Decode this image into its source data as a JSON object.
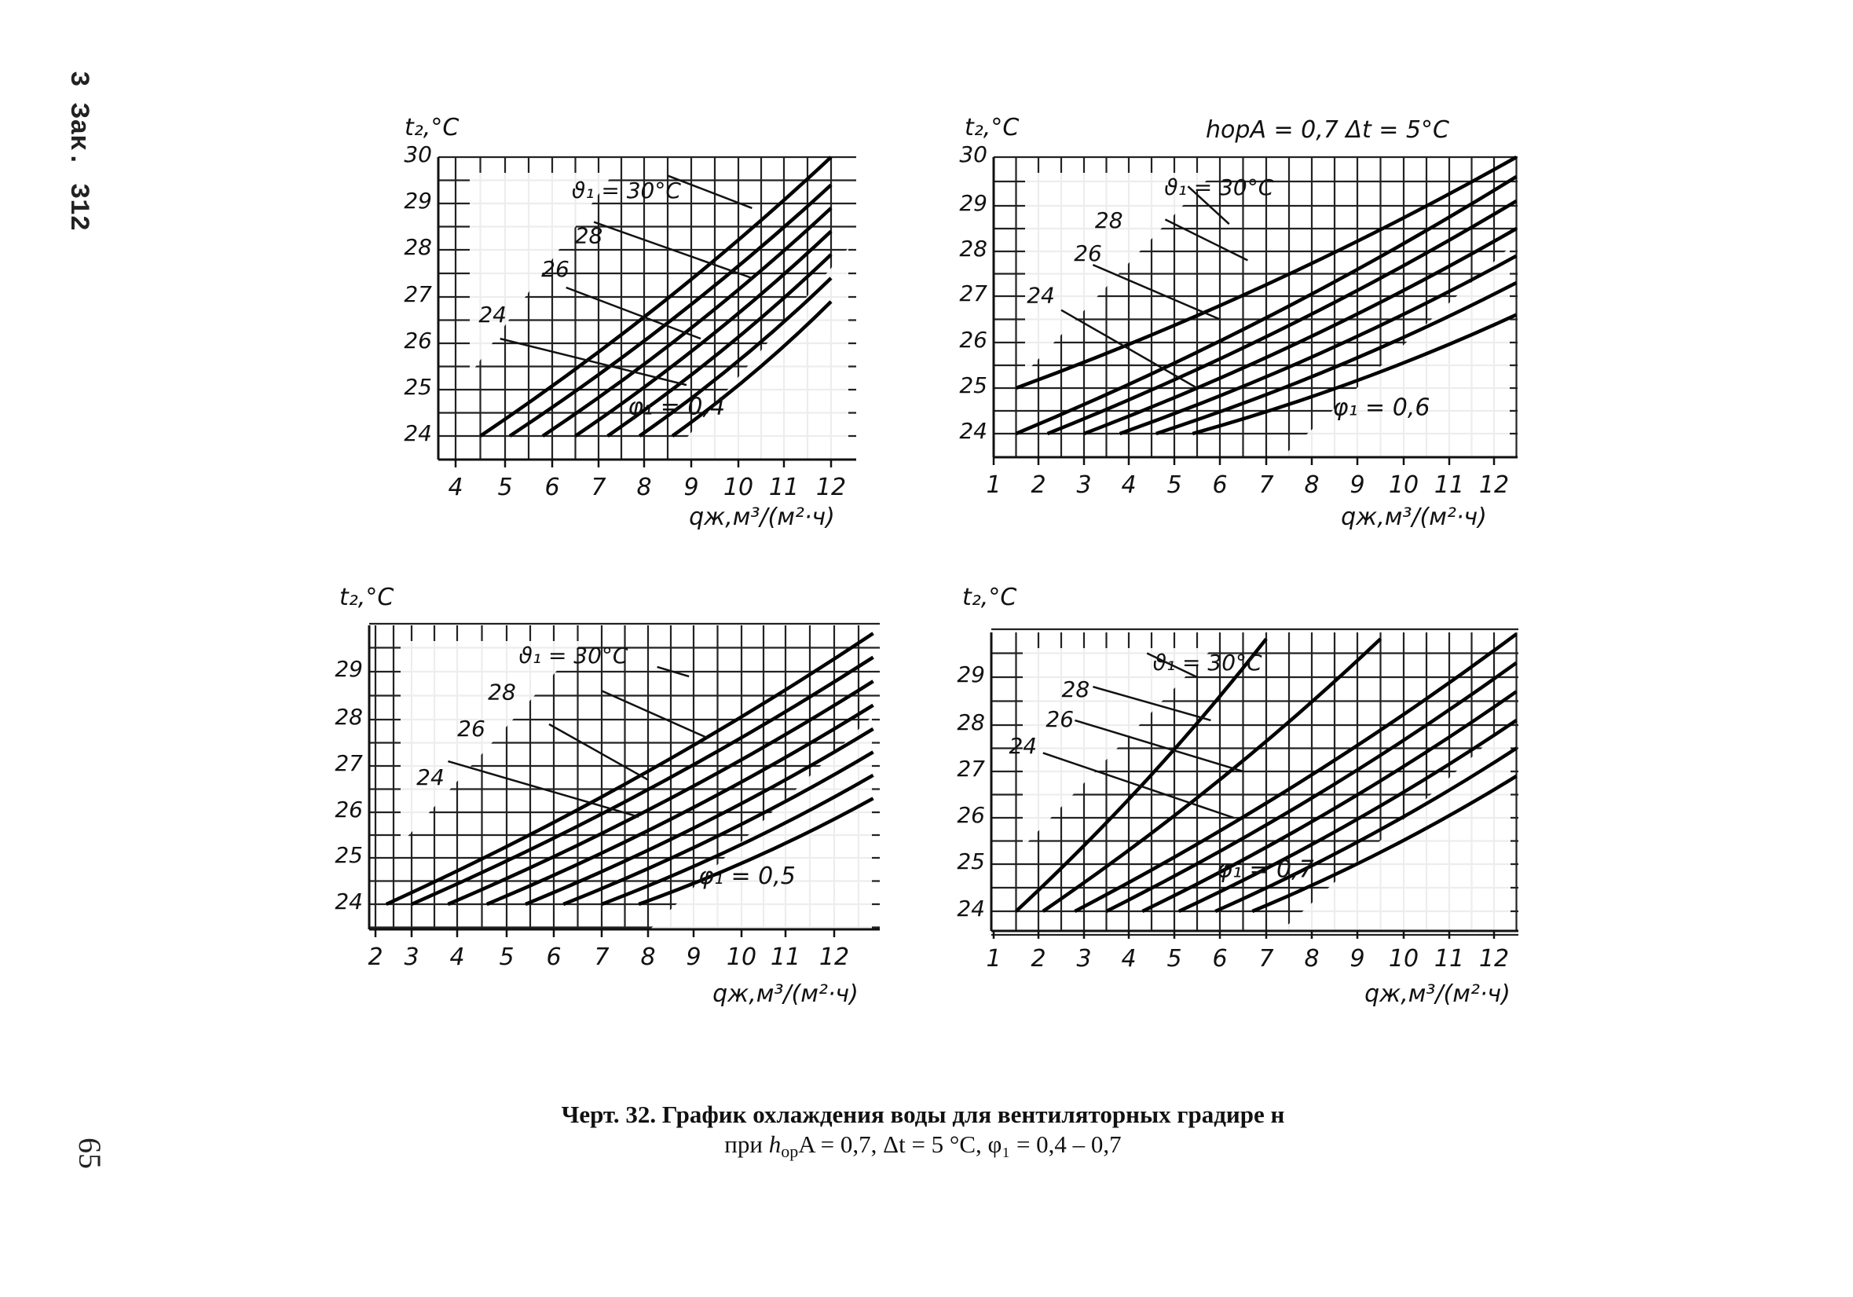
{
  "margin": {
    "side_header": "3 Зак. 312",
    "page_number": "65"
  },
  "caption": {
    "line1": "Черт. 32. График охлаждения воды для вентиляторных градире н",
    "line2_prefix": "при ",
    "h_symbol": "h",
    "h_subscript": "op",
    "line2_suffix": "A = 0,7, Δt = 5 °C, φ₁ = 0,4 – 0,7"
  },
  "chart_data": [
    {
      "type": "line",
      "panel": "top-left",
      "ylabel": "t₂,°C",
      "xlabel": "qж,м³/(м²·ч)",
      "xlim": [
        4,
        12
      ],
      "ylim": [
        24,
        30
      ],
      "x_ticks": [
        "4",
        "5",
        "6",
        "7",
        "8",
        "9",
        "10",
        "11",
        "12"
      ],
      "y_ticks": [
        "24",
        "25",
        "26",
        "27",
        "28",
        "29",
        "30"
      ],
      "annotations": {
        "phi": "φ₁ = 0,4",
        "theta_top": "ϑ₁ = 30°C",
        "theta_labels": [
          "28",
          "26",
          "24"
        ]
      },
      "series": [
        {
          "name": "",
          "points": [
            [
              4.5,
              24.0
            ],
            [
              12.0,
              30.0
            ]
          ]
        },
        {
          "name": "",
          "points": [
            [
              5.1,
              24.0
            ],
            [
              12.0,
              29.4
            ]
          ]
        },
        {
          "name": "",
          "points": [
            [
              5.8,
              24.0
            ],
            [
              12.0,
              28.9
            ]
          ]
        },
        {
          "name": "",
          "points": [
            [
              6.5,
              24.0
            ],
            [
              12.0,
              28.4
            ]
          ]
        },
        {
          "name": "",
          "points": [
            [
              7.2,
              24.0
            ],
            [
              12.0,
              27.9
            ]
          ]
        },
        {
          "name": "",
          "points": [
            [
              7.9,
              24.0
            ],
            [
              12.0,
              27.4
            ]
          ]
        },
        {
          "name": "",
          "points": [
            [
              8.6,
              24.0
            ],
            [
              12.0,
              26.9
            ]
          ]
        }
      ],
      "isotherms": [
        {
          "label": "ϑ₁ = 30°C",
          "from": [
            8.5,
            29.6
          ],
          "to": [
            10.3,
            28.9
          ]
        },
        {
          "label": "28",
          "from": [
            6.9,
            28.6
          ],
          "to": [
            10.3,
            27.4
          ]
        },
        {
          "label": "26",
          "from": [
            6.3,
            27.2
          ],
          "to": [
            9.2,
            26.1
          ]
        },
        {
          "label": "24",
          "from": [
            4.9,
            26.1
          ],
          "to": [
            8.9,
            25.1
          ]
        }
      ]
    },
    {
      "type": "line",
      "panel": "top-right",
      "ylabel": "t₂,°C",
      "xlabel": "qж,м³/(м²·ч)",
      "header": "hорA = 0,7   Δt = 5°C",
      "xlim": [
        1,
        12.5
      ],
      "ylim": [
        24,
        30
      ],
      "x_ticks": [
        "1",
        "2",
        "3",
        "4",
        "5",
        "6",
        "7",
        "8",
        "9",
        "10",
        "11",
        "12"
      ],
      "y_ticks": [
        "24",
        "25",
        "26",
        "27",
        "28",
        "29",
        "30"
      ],
      "annotations": {
        "phi": "φ₁ = 0,6",
        "theta_top": "ϑ₁ = 30°C",
        "theta_labels": [
          "28",
          "26",
          "24"
        ]
      },
      "series": [
        {
          "name": "",
          "points": [
            [
              1.5,
              25.0
            ],
            [
              12.5,
              30.0
            ]
          ]
        },
        {
          "name": "",
          "points": [
            [
              1.5,
              24.0
            ],
            [
              12.5,
              29.6
            ]
          ]
        },
        {
          "name": "",
          "points": [
            [
              2.2,
              24.0
            ],
            [
              12.5,
              29.1
            ]
          ]
        },
        {
          "name": "",
          "points": [
            [
              3.0,
              24.0
            ],
            [
              12.5,
              28.5
            ]
          ]
        },
        {
          "name": "",
          "points": [
            [
              3.8,
              24.0
            ],
            [
              12.5,
              27.9
            ]
          ]
        },
        {
          "name": "",
          "points": [
            [
              4.6,
              24.0
            ],
            [
              12.5,
              27.3
            ]
          ]
        },
        {
          "name": "",
          "points": [
            [
              5.4,
              24.0
            ],
            [
              12.5,
              26.6
            ]
          ]
        }
      ],
      "isotherms": [
        {
          "label": "ϑ₁ = 30°C",
          "from": [
            5.3,
            29.4
          ],
          "to": [
            6.2,
            28.6
          ]
        },
        {
          "label": "28",
          "from": [
            4.8,
            28.7
          ],
          "to": [
            6.6,
            27.8
          ]
        },
        {
          "label": "26",
          "from": [
            3.2,
            27.7
          ],
          "to": [
            6.0,
            26.5
          ]
        },
        {
          "label": "24",
          "from": [
            2.5,
            26.7
          ],
          "to": [
            5.5,
            25.0
          ]
        }
      ]
    },
    {
      "type": "line",
      "panel": "bottom-left",
      "ylabel": "t₂,°C",
      "xlabel": "qж,м³/(м²·ч)",
      "xlim": [
        2,
        12.8
      ],
      "ylim": [
        23.5,
        30
      ],
      "x_ticks": [
        "2",
        "3",
        "4",
        "5",
        "6",
        "7",
        "8",
        "9",
        "10",
        "11",
        "12"
      ],
      "y_ticks": [
        "24",
        "25",
        "26",
        "27",
        "28",
        "29"
      ],
      "annotations": {
        "phi": "φ₁ = 0,5",
        "theta_top": "ϑ₁ = 30°C",
        "theta_labels": [
          "28",
          "26",
          "24"
        ]
      },
      "series": [
        {
          "name": "",
          "points": [
            [
              2.3,
              24.0
            ],
            [
              12.8,
              29.8
            ]
          ]
        },
        {
          "name": "",
          "points": [
            [
              3.0,
              24.0
            ],
            [
              12.8,
              29.3
            ]
          ]
        },
        {
          "name": "",
          "points": [
            [
              3.8,
              24.0
            ],
            [
              12.8,
              28.8
            ]
          ]
        },
        {
          "name": "",
          "points": [
            [
              4.6,
              24.0
            ],
            [
              12.8,
              28.3
            ]
          ]
        },
        {
          "name": "",
          "points": [
            [
              5.4,
              24.0
            ],
            [
              12.8,
              27.8
            ]
          ]
        },
        {
          "name": "",
          "points": [
            [
              6.2,
              24.0
            ],
            [
              12.8,
              27.3
            ]
          ]
        },
        {
          "name": "",
          "points": [
            [
              7.0,
              24.0
            ],
            [
              12.8,
              26.8
            ]
          ]
        },
        {
          "name": "",
          "points": [
            [
              7.8,
              24.0
            ],
            [
              12.8,
              26.3
            ]
          ]
        }
      ],
      "isotherms": [
        {
          "label": "ϑ₁ = 30°C",
          "from": [
            8.2,
            29.1
          ],
          "to": [
            8.9,
            28.9
          ]
        },
        {
          "label": "28",
          "from": [
            7.0,
            28.6
          ],
          "to": [
            9.3,
            27.6
          ]
        },
        {
          "label": "26",
          "from": [
            5.9,
            27.9
          ],
          "to": [
            8.0,
            26.7
          ]
        },
        {
          "label": "24",
          "from": [
            3.8,
            27.1
          ],
          "to": [
            7.8,
            25.9
          ]
        }
      ]
    },
    {
      "type": "line",
      "panel": "bottom-right",
      "ylabel": "t₂,°C",
      "xlabel": "qж,м³/(м²·ч)",
      "xlim": [
        1,
        12.5
      ],
      "ylim": [
        23.5,
        30
      ],
      "x_ticks": [
        "1",
        "2",
        "3",
        "4",
        "5",
        "6",
        "7",
        "8",
        "9",
        "10",
        "11",
        "12"
      ],
      "y_ticks": [
        "24",
        "25",
        "26",
        "27",
        "28",
        "29"
      ],
      "annotations": {
        "phi": "φ₁ = 0,7",
        "theta_top": "ϑ₁ = 30°C",
        "theta_labels": [
          "28",
          "26",
          "24"
        ]
      },
      "series": [
        {
          "name": "",
          "points": [
            [
              1.5,
              24.0
            ],
            [
              7.0,
              29.8
            ]
          ]
        },
        {
          "name": "",
          "points": [
            [
              2.1,
              24.0
            ],
            [
              9.5,
              29.8
            ]
          ]
        },
        {
          "name": "",
          "points": [
            [
              2.8,
              24.0
            ],
            [
              12.5,
              29.9
            ]
          ]
        },
        {
          "name": "",
          "points": [
            [
              3.5,
              24.0
            ],
            [
              12.5,
              29.3
            ]
          ]
        },
        {
          "name": "",
          "points": [
            [
              4.3,
              24.0
            ],
            [
              12.5,
              28.7
            ]
          ]
        },
        {
          "name": "",
          "points": [
            [
              5.1,
              24.0
            ],
            [
              12.5,
              28.1
            ]
          ]
        },
        {
          "name": "",
          "points": [
            [
              5.9,
              24.0
            ],
            [
              12.5,
              27.5
            ]
          ]
        },
        {
          "name": "",
          "points": [
            [
              6.7,
              24.0
            ],
            [
              12.5,
              26.9
            ]
          ]
        }
      ],
      "isotherms": [
        {
          "label": "ϑ₁ = 30°C",
          "from": [
            4.4,
            29.5
          ],
          "to": [
            5.5,
            29.0
          ]
        },
        {
          "label": "28",
          "from": [
            3.2,
            28.8
          ],
          "to": [
            5.8,
            28.1
          ]
        },
        {
          "label": "26",
          "from": [
            2.8,
            28.1
          ],
          "to": [
            6.5,
            27.0
          ]
        },
        {
          "label": "24",
          "from": [
            2.1,
            27.4
          ],
          "to": [
            6.3,
            26.0
          ]
        }
      ]
    }
  ]
}
